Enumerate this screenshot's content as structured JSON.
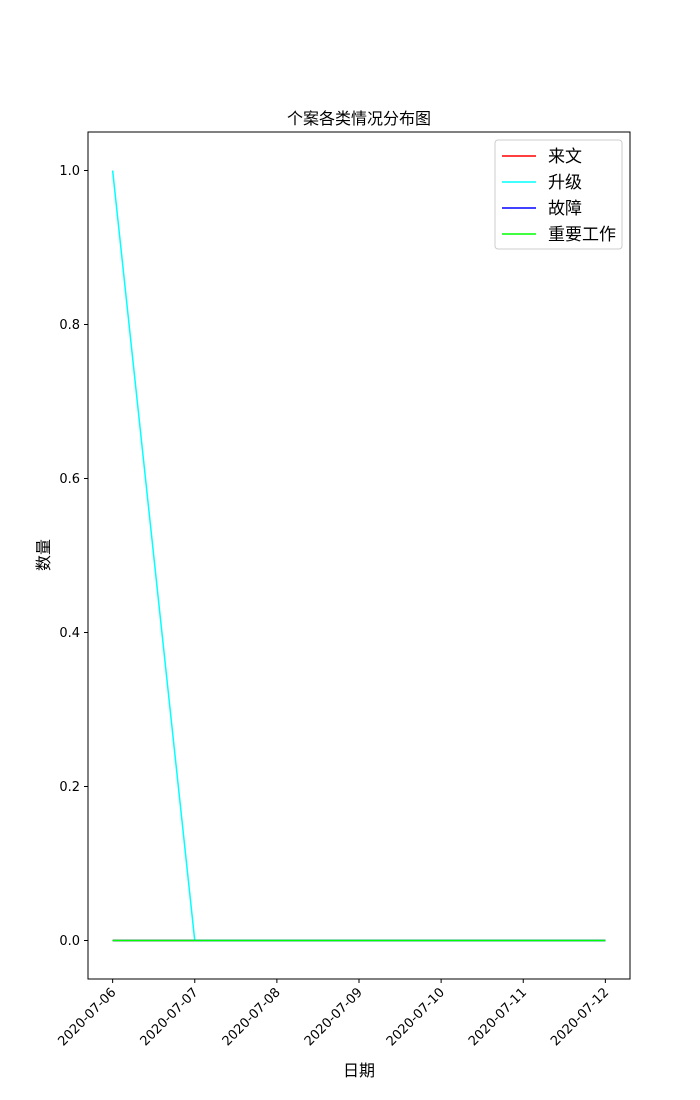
{
  "chart_data": {
    "type": "line",
    "title": "个案各类情况分布图",
    "xlabel": "日期",
    "ylabel": "数量",
    "x": [
      "2020-07-06",
      "2020-07-07",
      "2020-07-08",
      "2020-07-09",
      "2020-07-10",
      "2020-07-11",
      "2020-07-12"
    ],
    "ylim": [
      -0.05,
      1.05
    ],
    "yticks": [
      "0.0",
      "0.2",
      "0.4",
      "0.6",
      "0.8",
      "1.0"
    ],
    "grid": false,
    "legend_position": "top-right",
    "series": [
      {
        "name": "来文",
        "color": "#ff0000",
        "values": [
          0,
          0,
          0,
          0,
          0,
          0,
          0
        ]
      },
      {
        "name": "升级",
        "color": "#00ffff",
        "values": [
          1,
          0,
          0,
          0,
          0,
          0,
          0
        ]
      },
      {
        "name": "故障",
        "color": "#0000ff",
        "values": [
          0,
          0,
          0,
          0,
          0,
          0,
          0
        ]
      },
      {
        "name": "重要工作",
        "color": "#00ff00",
        "values": [
          0,
          0,
          0,
          0,
          0,
          0,
          0
        ]
      }
    ]
  }
}
